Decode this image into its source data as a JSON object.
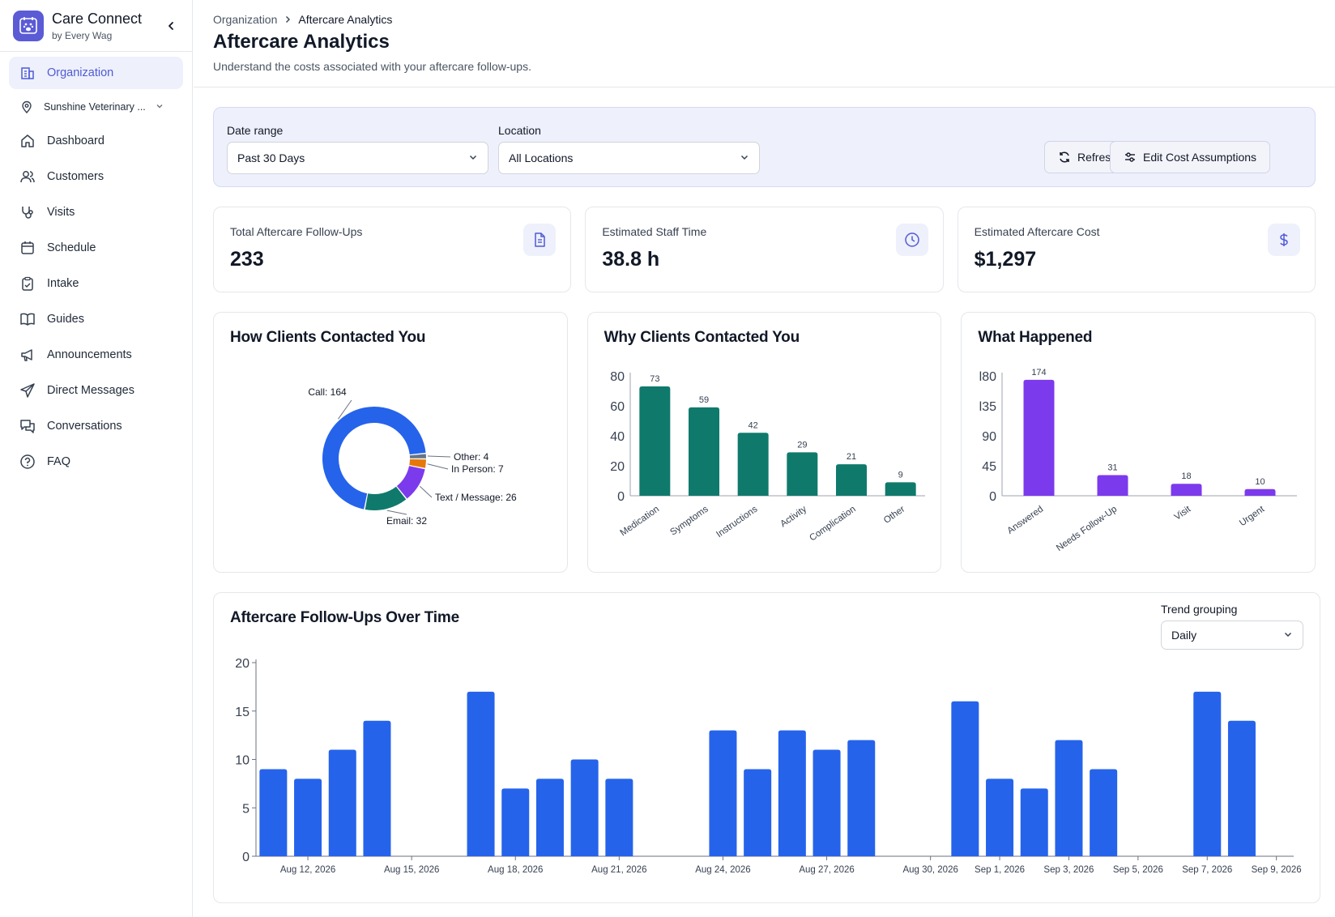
{
  "app": {
    "name": "Care Connect",
    "subtitle": "by Every Wag"
  },
  "sidebar": {
    "org_item": "Organization",
    "location": "Sunshine Veterinary ...",
    "items": [
      {
        "label": "Dashboard",
        "icon": "home-icon"
      },
      {
        "label": "Customers",
        "icon": "users-icon"
      },
      {
        "label": "Visits",
        "icon": "stethoscope-icon"
      },
      {
        "label": "Schedule",
        "icon": "calendar-icon"
      },
      {
        "label": "Intake",
        "icon": "clipboard-icon"
      },
      {
        "label": "Guides",
        "icon": "book-icon"
      },
      {
        "label": "Announcements",
        "icon": "megaphone-icon"
      },
      {
        "label": "Direct Messages",
        "icon": "send-icon"
      },
      {
        "label": "Conversations",
        "icon": "chat-icon"
      },
      {
        "label": "FAQ",
        "icon": "help-icon"
      }
    ]
  },
  "header": {
    "breadcrumb": [
      "Organization",
      "Aftercare Analytics"
    ],
    "title": "Aftercare Analytics",
    "subtitle": "Understand the costs associated with your aftercare follow-ups."
  },
  "filters": {
    "date_label": "Date range",
    "date_value": "Past 30 Days",
    "location_label": "Location",
    "location_value": "All Locations",
    "refresh_label": "Refresh",
    "edit_label": "Edit Cost Assumptions"
  },
  "stats": [
    {
      "label": "Total Aftercare Follow-Ups",
      "value": "233",
      "icon": "document-icon"
    },
    {
      "label": "Estimated Staff Time",
      "value": "38.8 h",
      "icon": "clock-icon"
    },
    {
      "label": "Estimated Aftercare Cost",
      "value": "$1,297",
      "icon": "dollar-icon"
    }
  ],
  "colors": {
    "accent": "#4f5bd5",
    "call": "#2563eb",
    "email": "#0f7a6c",
    "text": "#7c3aed",
    "inperson": "#e5780b",
    "other": "#64748b",
    "teal": "#0f7a6c",
    "purple": "#7c3aed",
    "blue": "#2563eb"
  },
  "trend": {
    "title": "Aftercare Follow-Ups Over Time",
    "grouping_label": "Trend grouping",
    "grouping_value": "Daily"
  },
  "chart_data": [
    {
      "type": "pie",
      "title": "How Clients Contacted You",
      "labels": [
        "Call",
        "Email",
        "Text / Message",
        "In Person",
        "Other"
      ],
      "values": [
        164,
        32,
        26,
        7,
        4
      ],
      "data_labels": [
        "Call: 164",
        "Email: 32",
        "Text / Message: 26",
        "In Person: 7",
        "Other: 4"
      ]
    },
    {
      "type": "bar",
      "title": "Why Clients Contacted You",
      "categories": [
        "Medication",
        "Symptoms",
        "Instructions",
        "Activity",
        "Complication",
        "Other"
      ],
      "values": [
        73,
        59,
        42,
        29,
        21,
        9
      ],
      "yticks": [
        0,
        20,
        40,
        60,
        80
      ],
      "ylim": [
        0,
        80
      ]
    },
    {
      "type": "bar",
      "title": "What Happened",
      "categories": [
        "Answered",
        "Needs Follow-Up",
        "Visit",
        "Urgent"
      ],
      "values": [
        174,
        31,
        18,
        10
      ],
      "yticks": [
        0,
        45,
        90,
        135,
        180
      ],
      "ytick_labels": [
        "0",
        "45",
        "90",
        "l35",
        "l80"
      ],
      "ylim": [
        0,
        180
      ]
    },
    {
      "type": "bar",
      "title": "Aftercare Follow-Ups Over Time",
      "x": [
        "Aug 11, 2026",
        "Aug 12, 2026",
        "Aug 13, 2026",
        "Aug 14, 2026",
        "Aug 15, 2026",
        "Aug 16, 2026",
        "Aug 17, 2026",
        "Aug 18, 2026",
        "Aug 19, 2026",
        "Aug 20, 2026",
        "Aug 21, 2026",
        "Aug 22, 2026",
        "Aug 23, 2026",
        "Aug 24, 2026",
        "Aug 25, 2026",
        "Aug 26, 2026",
        "Aug 27, 2026",
        "Aug 28, 2026",
        "Aug 29, 2026",
        "Aug 30, 2026",
        "Aug 31, 2026",
        "Sep 1, 2026",
        "Sep 2, 2026",
        "Sep 3, 2026",
        "Sep 4, 2026",
        "Sep 5, 2026",
        "Sep 6, 2026",
        "Sep 7, 2026",
        "Sep 8, 2026",
        "Sep 9, 2026"
      ],
      "values": [
        9,
        8,
        11,
        14,
        0,
        0,
        17,
        7,
        8,
        10,
        8,
        0,
        0,
        13,
        9,
        13,
        11,
        12,
        0,
        0,
        16,
        8,
        7,
        12,
        9,
        0,
        0,
        17,
        14,
        0
      ],
      "xtick_labels": [
        "Aug 12, 2026",
        "Aug 15, 2026",
        "Aug 18, 2026",
        "Aug 21, 2026",
        "Aug 24, 2026",
        "Aug 27, 2026",
        "Aug 30, 2026",
        "Sep 1, 2026",
        "Sep 3, 2026",
        "Sep 5, 2026",
        "Sep 7, 2026",
        "Sep 9, 2026"
      ],
      "yticks": [
        0,
        5,
        10,
        15,
        20
      ],
      "ylim": [
        0,
        20
      ]
    }
  ]
}
